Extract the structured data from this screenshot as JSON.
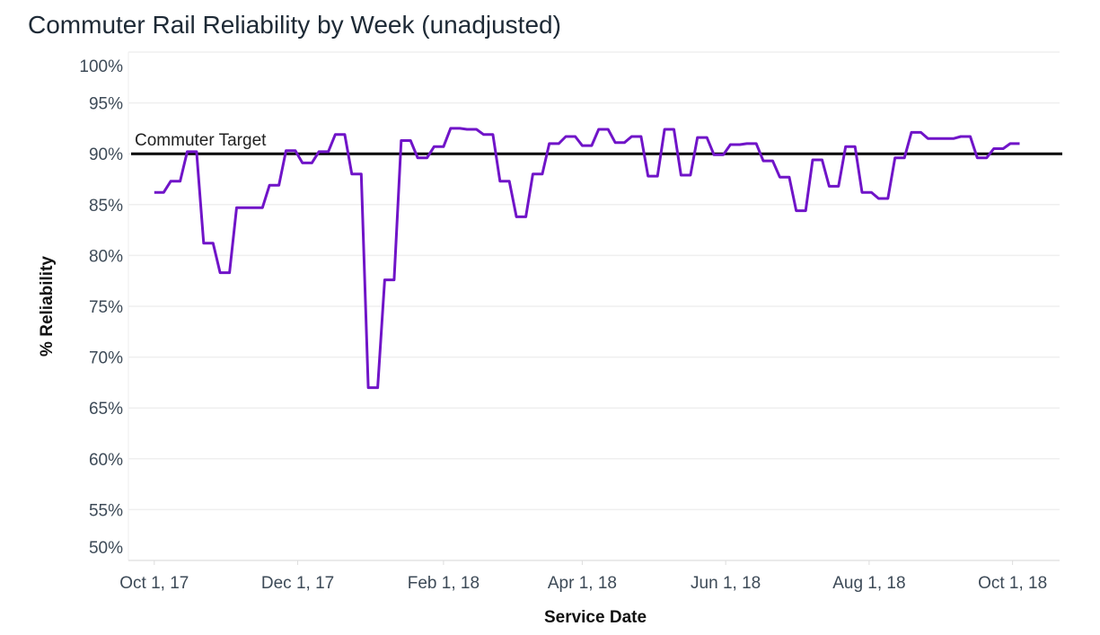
{
  "chart_data": {
    "type": "line",
    "title": "Commuter Rail Reliability by Week (unadjusted)",
    "xlabel": "Service Date",
    "ylabel": "% Reliability",
    "ylim": [
      50,
      100
    ],
    "xlim": [
      "2017-09-20",
      "2018-10-21"
    ],
    "y_ticks": [
      100,
      95,
      90,
      85,
      80,
      75,
      70,
      65,
      60,
      55,
      50
    ],
    "y_tick_labels": [
      "100%",
      "95%",
      "90%",
      "85%",
      "80%",
      "75%",
      "70%",
      "65%",
      "60%",
      "55%",
      "50%"
    ],
    "x_ticks": [
      "2017-10-01",
      "2017-12-01",
      "2018-02-01",
      "2018-04-01",
      "2018-06-01",
      "2018-08-01",
      "2018-10-01"
    ],
    "x_tick_labels": [
      "Oct 1, 17",
      "Dec 1, 17",
      "Feb 1, 18",
      "Apr 1, 18",
      "Jun 1, 18",
      "Aug 1, 18",
      "Oct 1, 18"
    ],
    "grid": "horizontal",
    "series_color": "#7014c8",
    "x_start": "2017-10-01",
    "x_step_days": 7,
    "values": [
      86.2,
      87.3,
      90.2,
      81.2,
      78.3,
      84.7,
      84.7,
      86.9,
      90.3,
      89.1,
      90.2,
      91.9,
      88.0,
      67.0,
      77.6,
      91.3,
      89.6,
      90.7,
      92.5,
      92.4,
      91.9,
      87.3,
      83.8,
      88.0,
      91.0,
      91.7,
      90.8,
      92.4,
      91.1,
      91.7,
      87.8,
      92.4,
      87.9,
      91.6,
      89.9,
      90.9,
      91.0,
      89.3,
      87.7,
      84.4,
      89.4,
      86.8,
      90.7,
      86.2,
      85.6,
      89.6,
      92.1,
      91.5,
      91.5,
      91.7,
      89.6,
      90.5,
      91.0
    ],
    "reference_line": {
      "label": "Commuter Target",
      "value": 90,
      "color": "#000000"
    }
  }
}
